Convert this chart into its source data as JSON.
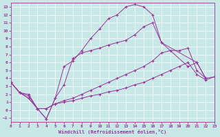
{
  "xlabel": "Windchill (Refroidissement éolien,°C)",
  "bg_color": "#c8e8e8",
  "line_color": "#993399",
  "xlim": [
    0,
    23
  ],
  "ylim": [
    -1.5,
    13.5
  ],
  "xticks": [
    0,
    1,
    2,
    3,
    4,
    5,
    6,
    7,
    8,
    9,
    10,
    11,
    12,
    13,
    14,
    15,
    16,
    17,
    18,
    19,
    20,
    21,
    22,
    23
  ],
  "yticks": [
    -1,
    0,
    1,
    2,
    3,
    4,
    5,
    6,
    7,
    8,
    9,
    10,
    11,
    12,
    13
  ],
  "lines": [
    {
      "x": [
        0,
        1,
        2,
        3,
        4,
        5,
        6,
        7,
        8,
        9,
        10,
        11,
        12,
        13,
        14,
        15,
        16,
        17,
        21,
        22
      ],
      "y": [
        3.5,
        2.2,
        2.0,
        0.2,
        -1.1,
        1.5,
        5.5,
        6.2,
        7.5,
        9.0,
        10.2,
        11.5,
        12.0,
        13.0,
        13.3,
        13.0,
        12.0,
        8.5,
        6.0,
        4.0
      ]
    },
    {
      "x": [
        0,
        1,
        2,
        3,
        4,
        5,
        6,
        7,
        8,
        9,
        10,
        11,
        12,
        13,
        14,
        15,
        16,
        17,
        20,
        21,
        22
      ],
      "y": [
        3.5,
        2.2,
        1.8,
        0.2,
        -1.1,
        1.5,
        3.2,
        6.5,
        7.2,
        7.5,
        7.8,
        8.2,
        8.5,
        8.8,
        9.5,
        10.5,
        11.0,
        8.5,
        5.5,
        6.0,
        4.0
      ]
    },
    {
      "x": [
        0,
        1,
        2,
        3,
        4,
        5,
        6,
        7,
        8,
        9,
        10,
        11,
        12,
        13,
        14,
        15,
        16,
        17,
        18,
        19,
        20,
        21,
        22,
        23
      ],
      "y": [
        3.5,
        2.2,
        1.5,
        0.2,
        0.2,
        0.8,
        1.2,
        1.5,
        2.0,
        2.5,
        3.0,
        3.5,
        4.0,
        4.5,
        5.0,
        5.5,
        6.2,
        7.2,
        7.5,
        7.5,
        7.8,
        5.0,
        4.0,
        4.2
      ]
    },
    {
      "x": [
        0,
        1,
        2,
        3,
        4,
        5,
        6,
        7,
        8,
        9,
        10,
        11,
        12,
        13,
        14,
        15,
        16,
        17,
        18,
        19,
        20,
        21,
        22,
        23
      ],
      "y": [
        3.5,
        2.2,
        1.5,
        0.2,
        0.2,
        0.8,
        1.0,
        1.2,
        1.5,
        1.8,
        2.0,
        2.3,
        2.5,
        2.8,
        3.2,
        3.5,
        4.0,
        4.5,
        5.0,
        5.5,
        6.0,
        4.5,
        3.8,
        4.2
      ]
    }
  ]
}
